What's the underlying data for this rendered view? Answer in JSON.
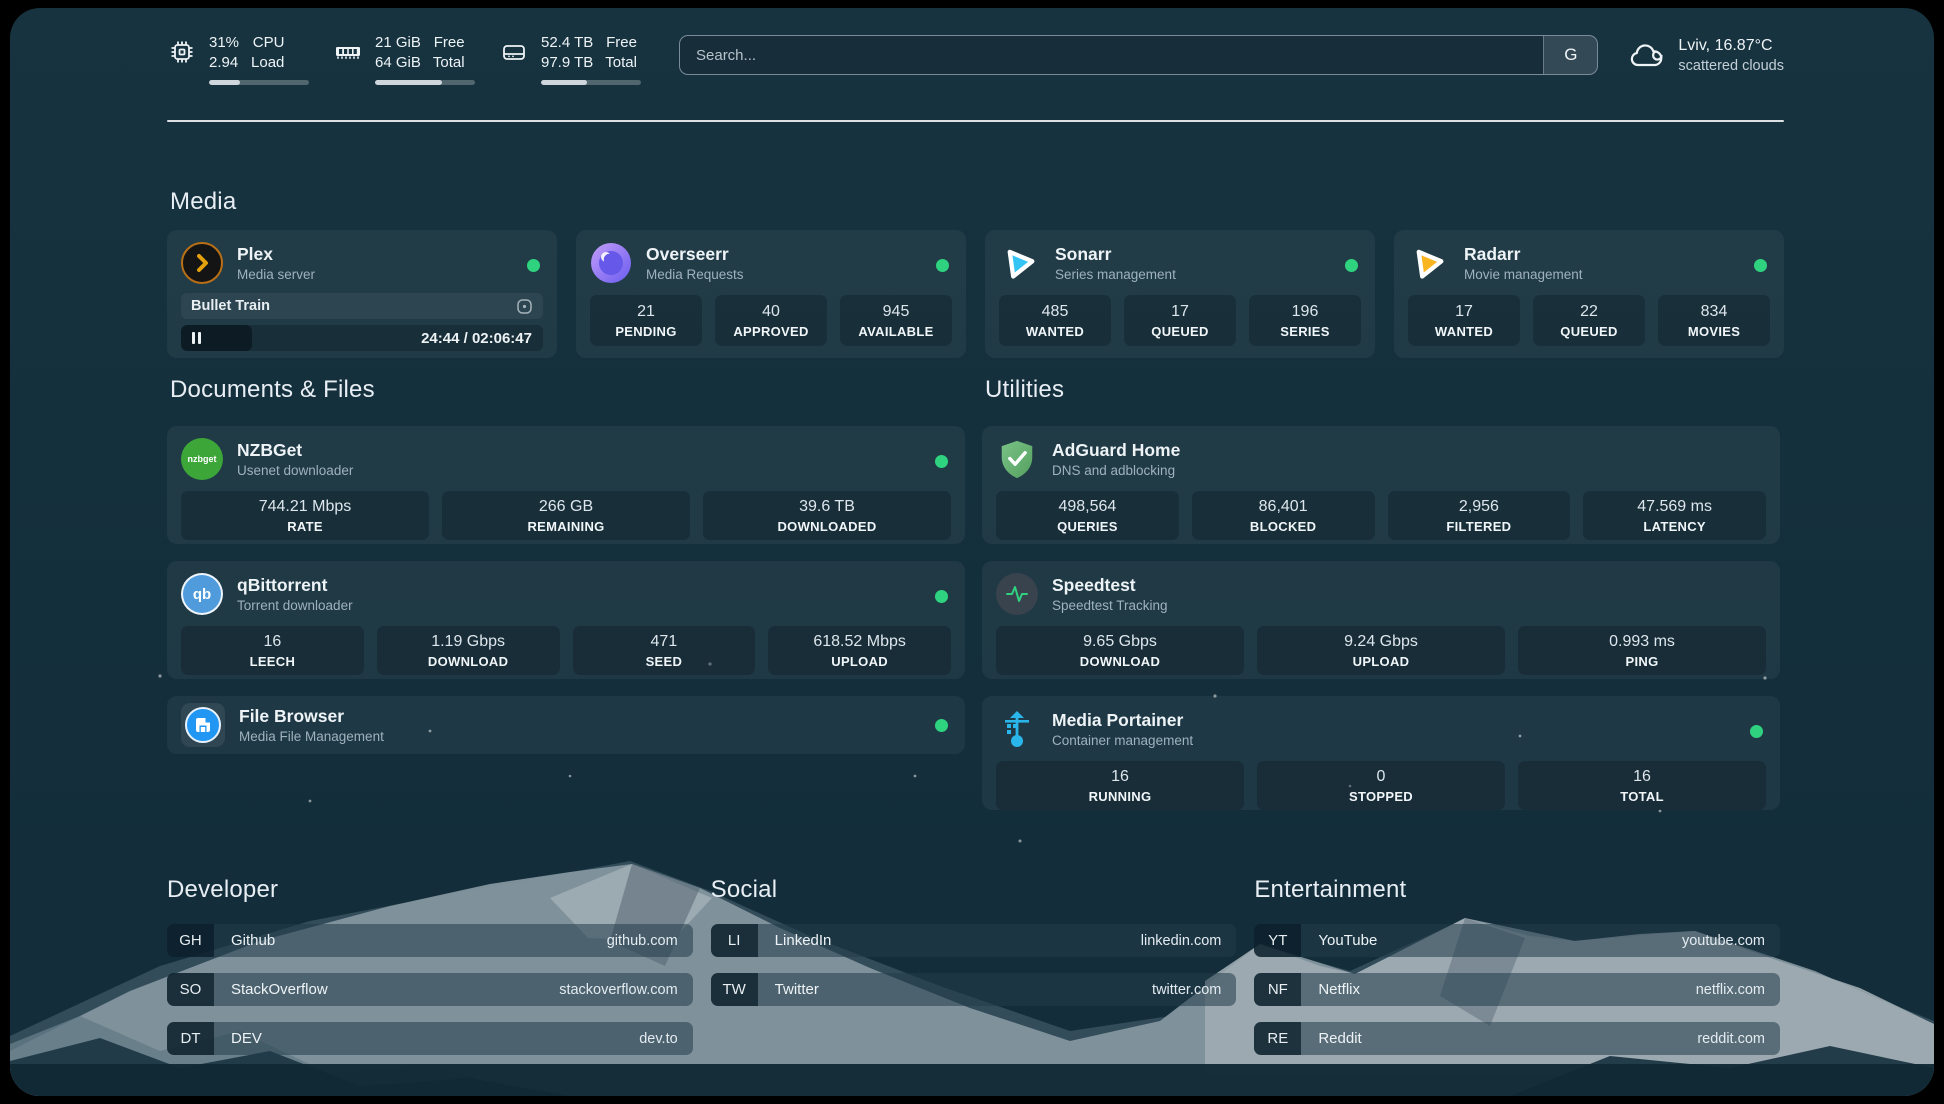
{
  "colors": {
    "accent_green": "#2fd37f",
    "plex_amber": "#e5a00d",
    "sonarr_blue": "#35c5f4",
    "radarr_yellow": "#f9b51f",
    "adguard_green": "#67b279",
    "portainer_blue": "#2ab6ea"
  },
  "header": {
    "stats": [
      {
        "icon": "cpu-icon",
        "value1": "31%",
        "value2": "2.94",
        "label1": "CPU",
        "label2": "Load",
        "progress": 31
      },
      {
        "icon": "ram-icon",
        "value1": "21 GiB",
        "value2": "64 GiB",
        "label1": "Free",
        "label2": "Total",
        "progress": 67
      },
      {
        "icon": "disk-icon",
        "value1": "52.4 TB",
        "value2": "97.9 TB",
        "label1": "Free",
        "label2": "Total",
        "progress": 46
      }
    ],
    "search": {
      "placeholder": "Search...",
      "button_label": "G"
    },
    "weather": {
      "line1": "Lviv, 16.87°C",
      "line2": "scattered clouds"
    }
  },
  "sections": {
    "media": {
      "title": "Media",
      "apps": [
        {
          "name": "Plex",
          "desc": "Media server",
          "player": {
            "title": "Bullet Train",
            "time": "24:44 / 02:06:47",
            "progress": 19.6
          }
        },
        {
          "name": "Overseerr",
          "desc": "Media Requests",
          "stats": [
            {
              "value": "21",
              "label": "PENDING"
            },
            {
              "value": "40",
              "label": "APPROVED"
            },
            {
              "value": "945",
              "label": "AVAILABLE"
            }
          ]
        },
        {
          "name": "Sonarr",
          "desc": "Series management",
          "stats": [
            {
              "value": "485",
              "label": "WANTED"
            },
            {
              "value": "17",
              "label": "QUEUED"
            },
            {
              "value": "196",
              "label": "SERIES"
            }
          ]
        },
        {
          "name": "Radarr",
          "desc": "Movie management",
          "stats": [
            {
              "value": "17",
              "label": "WANTED"
            },
            {
              "value": "22",
              "label": "QUEUED"
            },
            {
              "value": "834",
              "label": "MOVIES"
            }
          ]
        }
      ]
    },
    "documents": {
      "title": "Documents & Files",
      "apps": [
        {
          "name": "NZBGet",
          "desc": "Usenet downloader",
          "stats": [
            {
              "value": "744.21 Mbps",
              "label": "RATE"
            },
            {
              "value": "266 GB",
              "label": "REMAINING"
            },
            {
              "value": "39.6 TB",
              "label": "DOWNLOADED"
            }
          ]
        },
        {
          "name": "qBittorrent",
          "desc": "Torrent downloader",
          "stats": [
            {
              "value": "16",
              "label": "LEECH"
            },
            {
              "value": "1.19 Gbps",
              "label": "DOWNLOAD"
            },
            {
              "value": "471",
              "label": "SEED"
            },
            {
              "value": "618.52 Mbps",
              "label": "UPLOAD"
            }
          ]
        },
        {
          "name": "File Browser",
          "desc": "Media File Management"
        }
      ]
    },
    "utilities": {
      "title": "Utilities",
      "apps": [
        {
          "name": "AdGuard Home",
          "desc": "DNS and adblocking",
          "stats": [
            {
              "value": "498,564",
              "label": "QUERIES"
            },
            {
              "value": "86,401",
              "label": "BLOCKED"
            },
            {
              "value": "2,956",
              "label": "FILTERED"
            },
            {
              "value": "47.569 ms",
              "label": "LATENCY"
            }
          ]
        },
        {
          "name": "Speedtest",
          "desc": "Speedtest Tracking",
          "stats": [
            {
              "value": "9.65 Gbps",
              "label": "DOWNLOAD"
            },
            {
              "value": "9.24 Gbps",
              "label": "UPLOAD"
            },
            {
              "value": "0.993 ms",
              "label": "PING"
            }
          ]
        },
        {
          "name": "Media Portainer",
          "desc": "Container management",
          "stats": [
            {
              "value": "16",
              "label": "RUNNING"
            },
            {
              "value": "0",
              "label": "STOPPED"
            },
            {
              "value": "16",
              "label": "TOTAL"
            }
          ]
        }
      ]
    }
  },
  "bookmarks": [
    {
      "title": "Developer",
      "links": [
        {
          "abbr": "GH",
          "name": "Github",
          "url": "github.com"
        },
        {
          "abbr": "SO",
          "name": "StackOverflow",
          "url": "stackoverflow.com"
        },
        {
          "abbr": "DT",
          "name": "DEV",
          "url": "dev.to"
        }
      ]
    },
    {
      "title": "Social",
      "links": [
        {
          "abbr": "LI",
          "name": "LinkedIn",
          "url": "linkedin.com"
        },
        {
          "abbr": "TW",
          "name": "Twitter",
          "url": "twitter.com"
        }
      ]
    },
    {
      "title": "Entertainment",
      "links": [
        {
          "abbr": "YT",
          "name": "YouTube",
          "url": "youtube.com"
        },
        {
          "abbr": "NF",
          "name": "Netflix",
          "url": "netflix.com"
        },
        {
          "abbr": "RE",
          "name": "Reddit",
          "url": "reddit.com"
        }
      ]
    }
  ]
}
